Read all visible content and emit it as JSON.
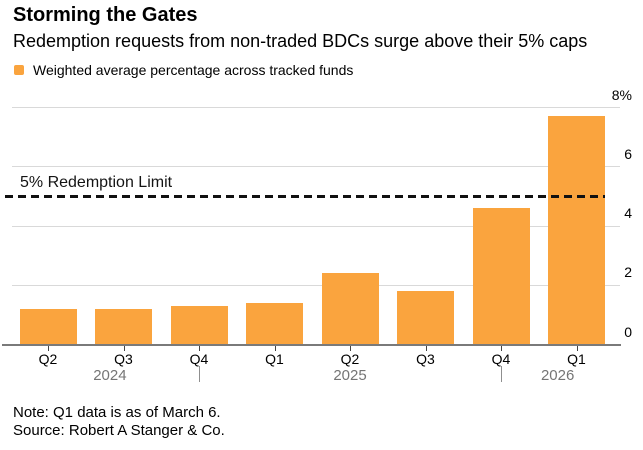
{
  "header": {
    "title": "Storming the Gates",
    "subtitle": "Redemption requests from non-traded BDCs surge above their 5% caps"
  },
  "legend": {
    "label": "Weighted average percentage across tracked funds",
    "swatch_color": "#FAA43E"
  },
  "chart_data": {
    "type": "bar",
    "title": "Storming the Gates",
    "subtitle": "Redemption requests from non-traded BDCs surge above their 5% caps",
    "series_name": "Weighted average percentage across tracked funds",
    "categories": [
      "Q2 2024",
      "Q3 2024",
      "Q4 2024",
      "Q1 2025",
      "Q2 2025",
      "Q3 2025",
      "Q4 2025",
      "Q1 2026"
    ],
    "bar_labels": [
      "Q2",
      "Q3",
      "Q4",
      "Q1",
      "Q2",
      "Q3",
      "Q4",
      "Q1"
    ],
    "values": [
      1.2,
      1.2,
      1.3,
      1.4,
      2.4,
      1.8,
      4.6,
      7.7
    ],
    "unit": "%",
    "ylim": [
      0,
      8
    ],
    "yticks": [
      {
        "value": 0,
        "label": "0"
      },
      {
        "value": 2,
        "label": "2"
      },
      {
        "value": 4,
        "label": "4"
      },
      {
        "value": 6,
        "label": "6"
      },
      {
        "value": 8,
        "label": "8%"
      }
    ],
    "grid": "horizontal",
    "axis_side": "right",
    "legend_position": "top-left",
    "reference_line": {
      "value": 5,
      "label": "5% Redemption Limit",
      "style": "dashed"
    },
    "year_axis": [
      {
        "type": "label",
        "text": "2024",
        "at": 0.82
      },
      {
        "type": "tick",
        "at": 2
      },
      {
        "type": "label",
        "text": "2025",
        "at": 4
      },
      {
        "type": "tick",
        "at": 6
      },
      {
        "type": "label",
        "text": "2026",
        "at": 6.75
      }
    ]
  },
  "footer": {
    "note": "Note: Q1 data is as of March 6.",
    "source": "Source: Robert A Stanger & Co."
  },
  "colors": {
    "bar": "#FAA43E",
    "grid_line": "#D9D9D9",
    "axis_line": "#7A7A7A",
    "tick": "#444444",
    "year_label": "#757575",
    "year_tick": "#8F8F8F",
    "reference_line": "#111111",
    "text": "#000000"
  }
}
